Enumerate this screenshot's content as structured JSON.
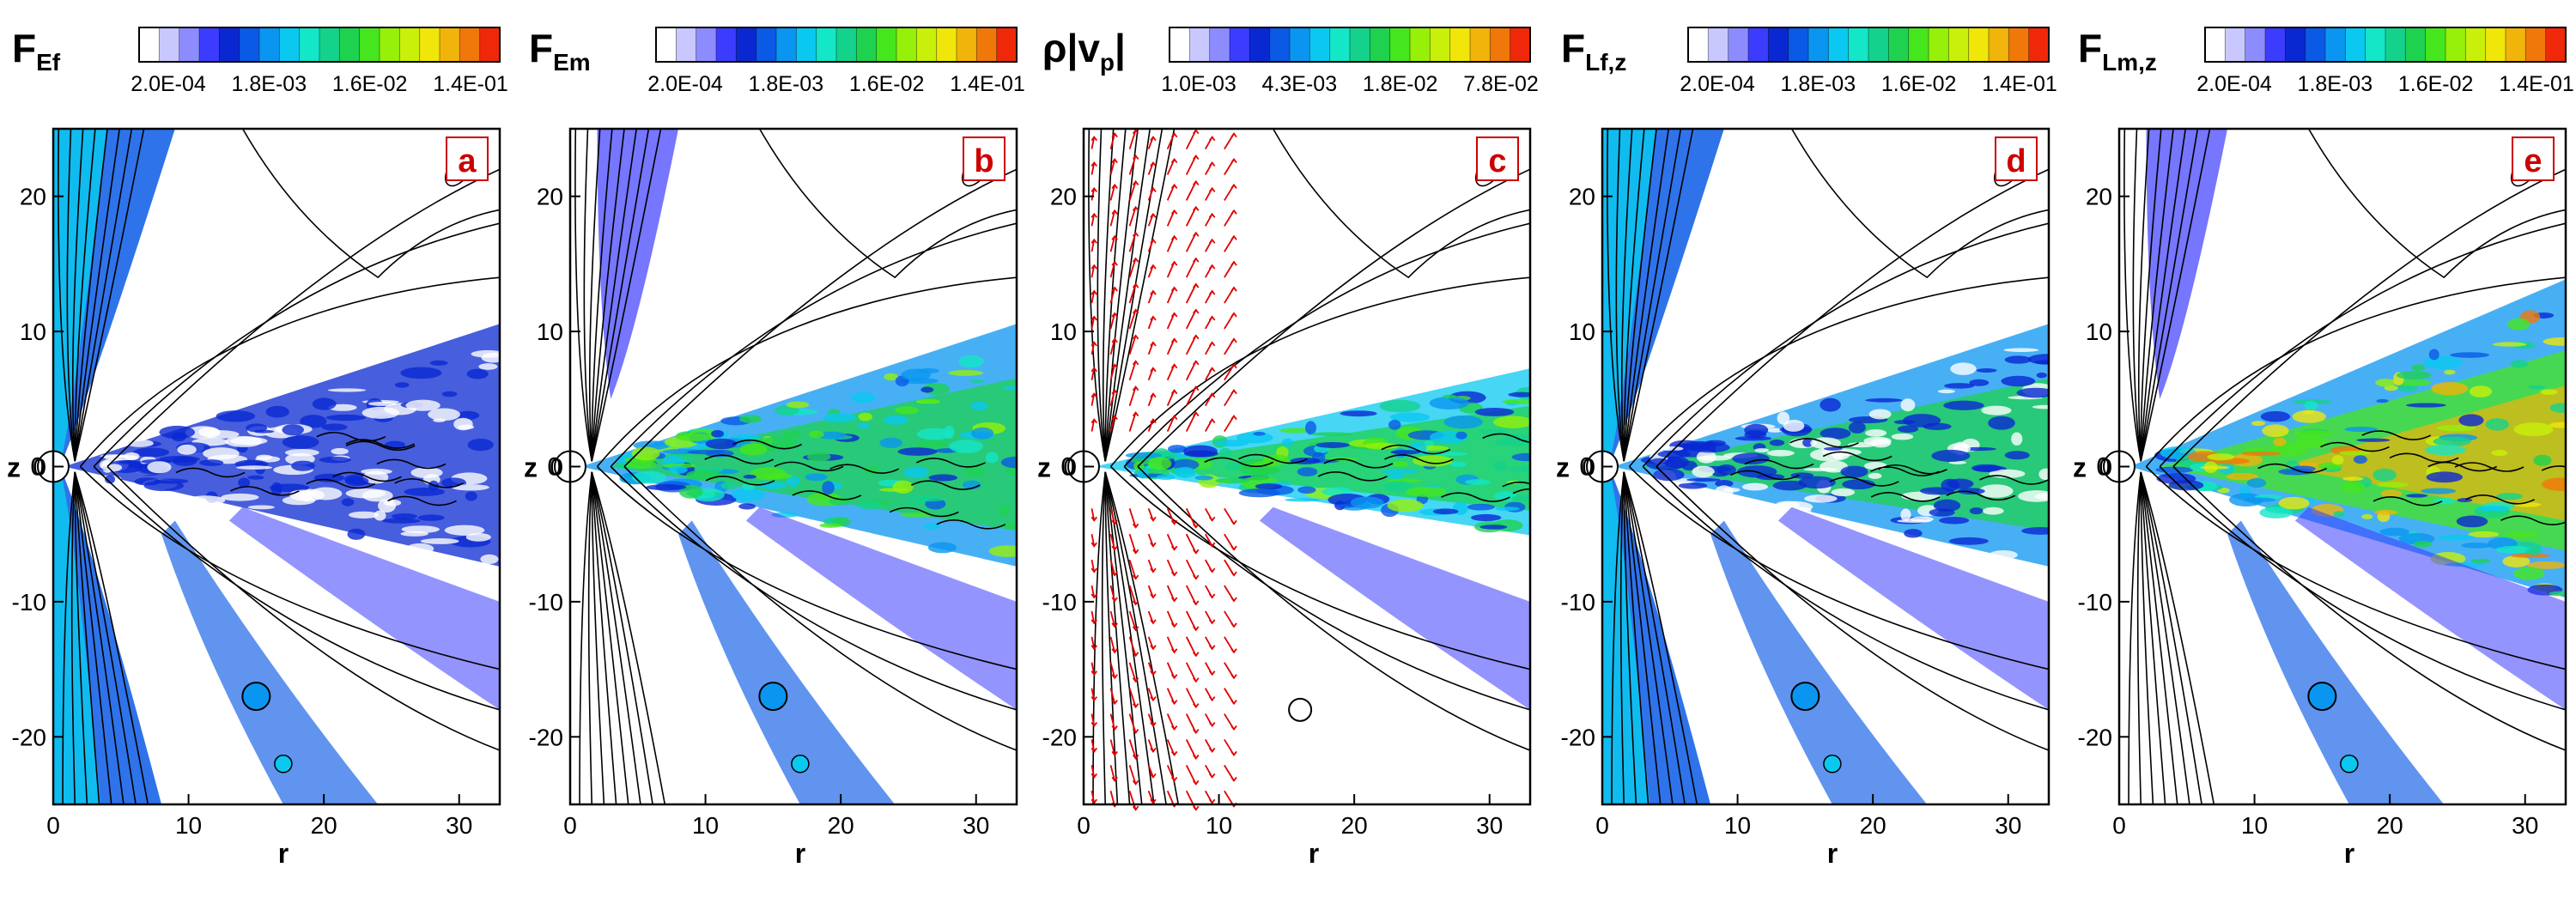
{
  "chart_data": [
    {
      "type": "heatmap",
      "title": "F_Ef",
      "title_main": "F",
      "title_sub": "Ef",
      "panel_label": "a",
      "xlabel": "r",
      "ylabel": "z",
      "xlim": [
        0,
        33
      ],
      "ylim": [
        -25,
        25
      ],
      "x_ticks": [
        "0",
        "10",
        "20",
        "30"
      ],
      "y_ticks": [
        "-20",
        "-10",
        "0",
        "10",
        "20"
      ],
      "colorbar": {
        "scale": "log",
        "min": 0.0002,
        "max": 0.14,
        "tick_labels": [
          "2.0E-04",
          "1.8E-03",
          "1.6E-02",
          "1.4E-01"
        ]
      }
    },
    {
      "type": "heatmap",
      "title": "F_Em",
      "title_main": "F",
      "title_sub": "Em",
      "panel_label": "b",
      "xlabel": "r",
      "ylabel": "z",
      "xlim": [
        0,
        33
      ],
      "ylim": [
        -25,
        25
      ],
      "x_ticks": [
        "0",
        "10",
        "20",
        "30"
      ],
      "y_ticks": [
        "-20",
        "-10",
        "0",
        "10",
        "20"
      ],
      "colorbar": {
        "scale": "log",
        "min": 0.0002,
        "max": 0.14,
        "tick_labels": [
          "2.0E-04",
          "1.8E-03",
          "1.6E-02",
          "1.4E-01"
        ]
      }
    },
    {
      "type": "heatmap",
      "title": "ρ|v_p|",
      "title_main": "ρ|v",
      "title_sub": "p",
      "title_end": "|",
      "panel_label": "c",
      "xlabel": "r",
      "ylabel": "z",
      "xlim": [
        0,
        33
      ],
      "ylim": [
        -25,
        25
      ],
      "x_ticks": [
        "0",
        "10",
        "20",
        "30"
      ],
      "y_ticks": [
        "-20",
        "-10",
        "0",
        "10",
        "20"
      ],
      "vector_field": true,
      "colorbar": {
        "scale": "log",
        "min": 0.001,
        "max": 0.078,
        "tick_labels": [
          "1.0E-03",
          "4.3E-03",
          "1.8E-02",
          "7.8E-02"
        ]
      }
    },
    {
      "type": "heatmap",
      "title": "F_Lf,z",
      "title_main": "F",
      "title_sub": "Lf,z",
      "panel_label": "d",
      "xlabel": "r",
      "ylabel": "z",
      "xlim": [
        0,
        33
      ],
      "ylim": [
        -25,
        25
      ],
      "x_ticks": [
        "0",
        "10",
        "20",
        "30"
      ],
      "y_ticks": [
        "-20",
        "-10",
        "0",
        "10",
        "20"
      ],
      "colorbar": {
        "scale": "log",
        "min": 0.0002,
        "max": 0.14,
        "tick_labels": [
          "2.0E-04",
          "1.8E-03",
          "1.6E-02",
          "1.4E-01"
        ]
      }
    },
    {
      "type": "heatmap",
      "title": "F_Lm,z",
      "title_main": "F",
      "title_sub": "Lm,z",
      "panel_label": "e",
      "xlabel": "r",
      "ylabel": "z",
      "xlim": [
        0,
        33
      ],
      "ylim": [
        -25,
        25
      ],
      "x_ticks": [
        "0",
        "10",
        "20",
        "30"
      ],
      "y_ticks": [
        "-20",
        "-10",
        "0",
        "10",
        "20"
      ],
      "colorbar": {
        "scale": "log",
        "min": 0.0002,
        "max": 0.14,
        "tick_labels": [
          "2.0E-04",
          "1.8E-03",
          "1.6E-02",
          "1.4E-01"
        ]
      }
    }
  ],
  "colormap": [
    "#ffffff",
    "#c8c8ff",
    "#8c8cff",
    "#3c3cff",
    "#0a28d2",
    "#0a5ae6",
    "#0a96f0",
    "#0ac8f0",
    "#14e6c8",
    "#14d28c",
    "#1ed250",
    "#46e61e",
    "#96f00a",
    "#c8f00a",
    "#f0e60a",
    "#f0b40a",
    "#f0780a",
    "#f0280a"
  ],
  "colors": {
    "axis": "#000000",
    "contour": "#000000",
    "vectors": "#e00000",
    "label_box": "#cc0000"
  }
}
